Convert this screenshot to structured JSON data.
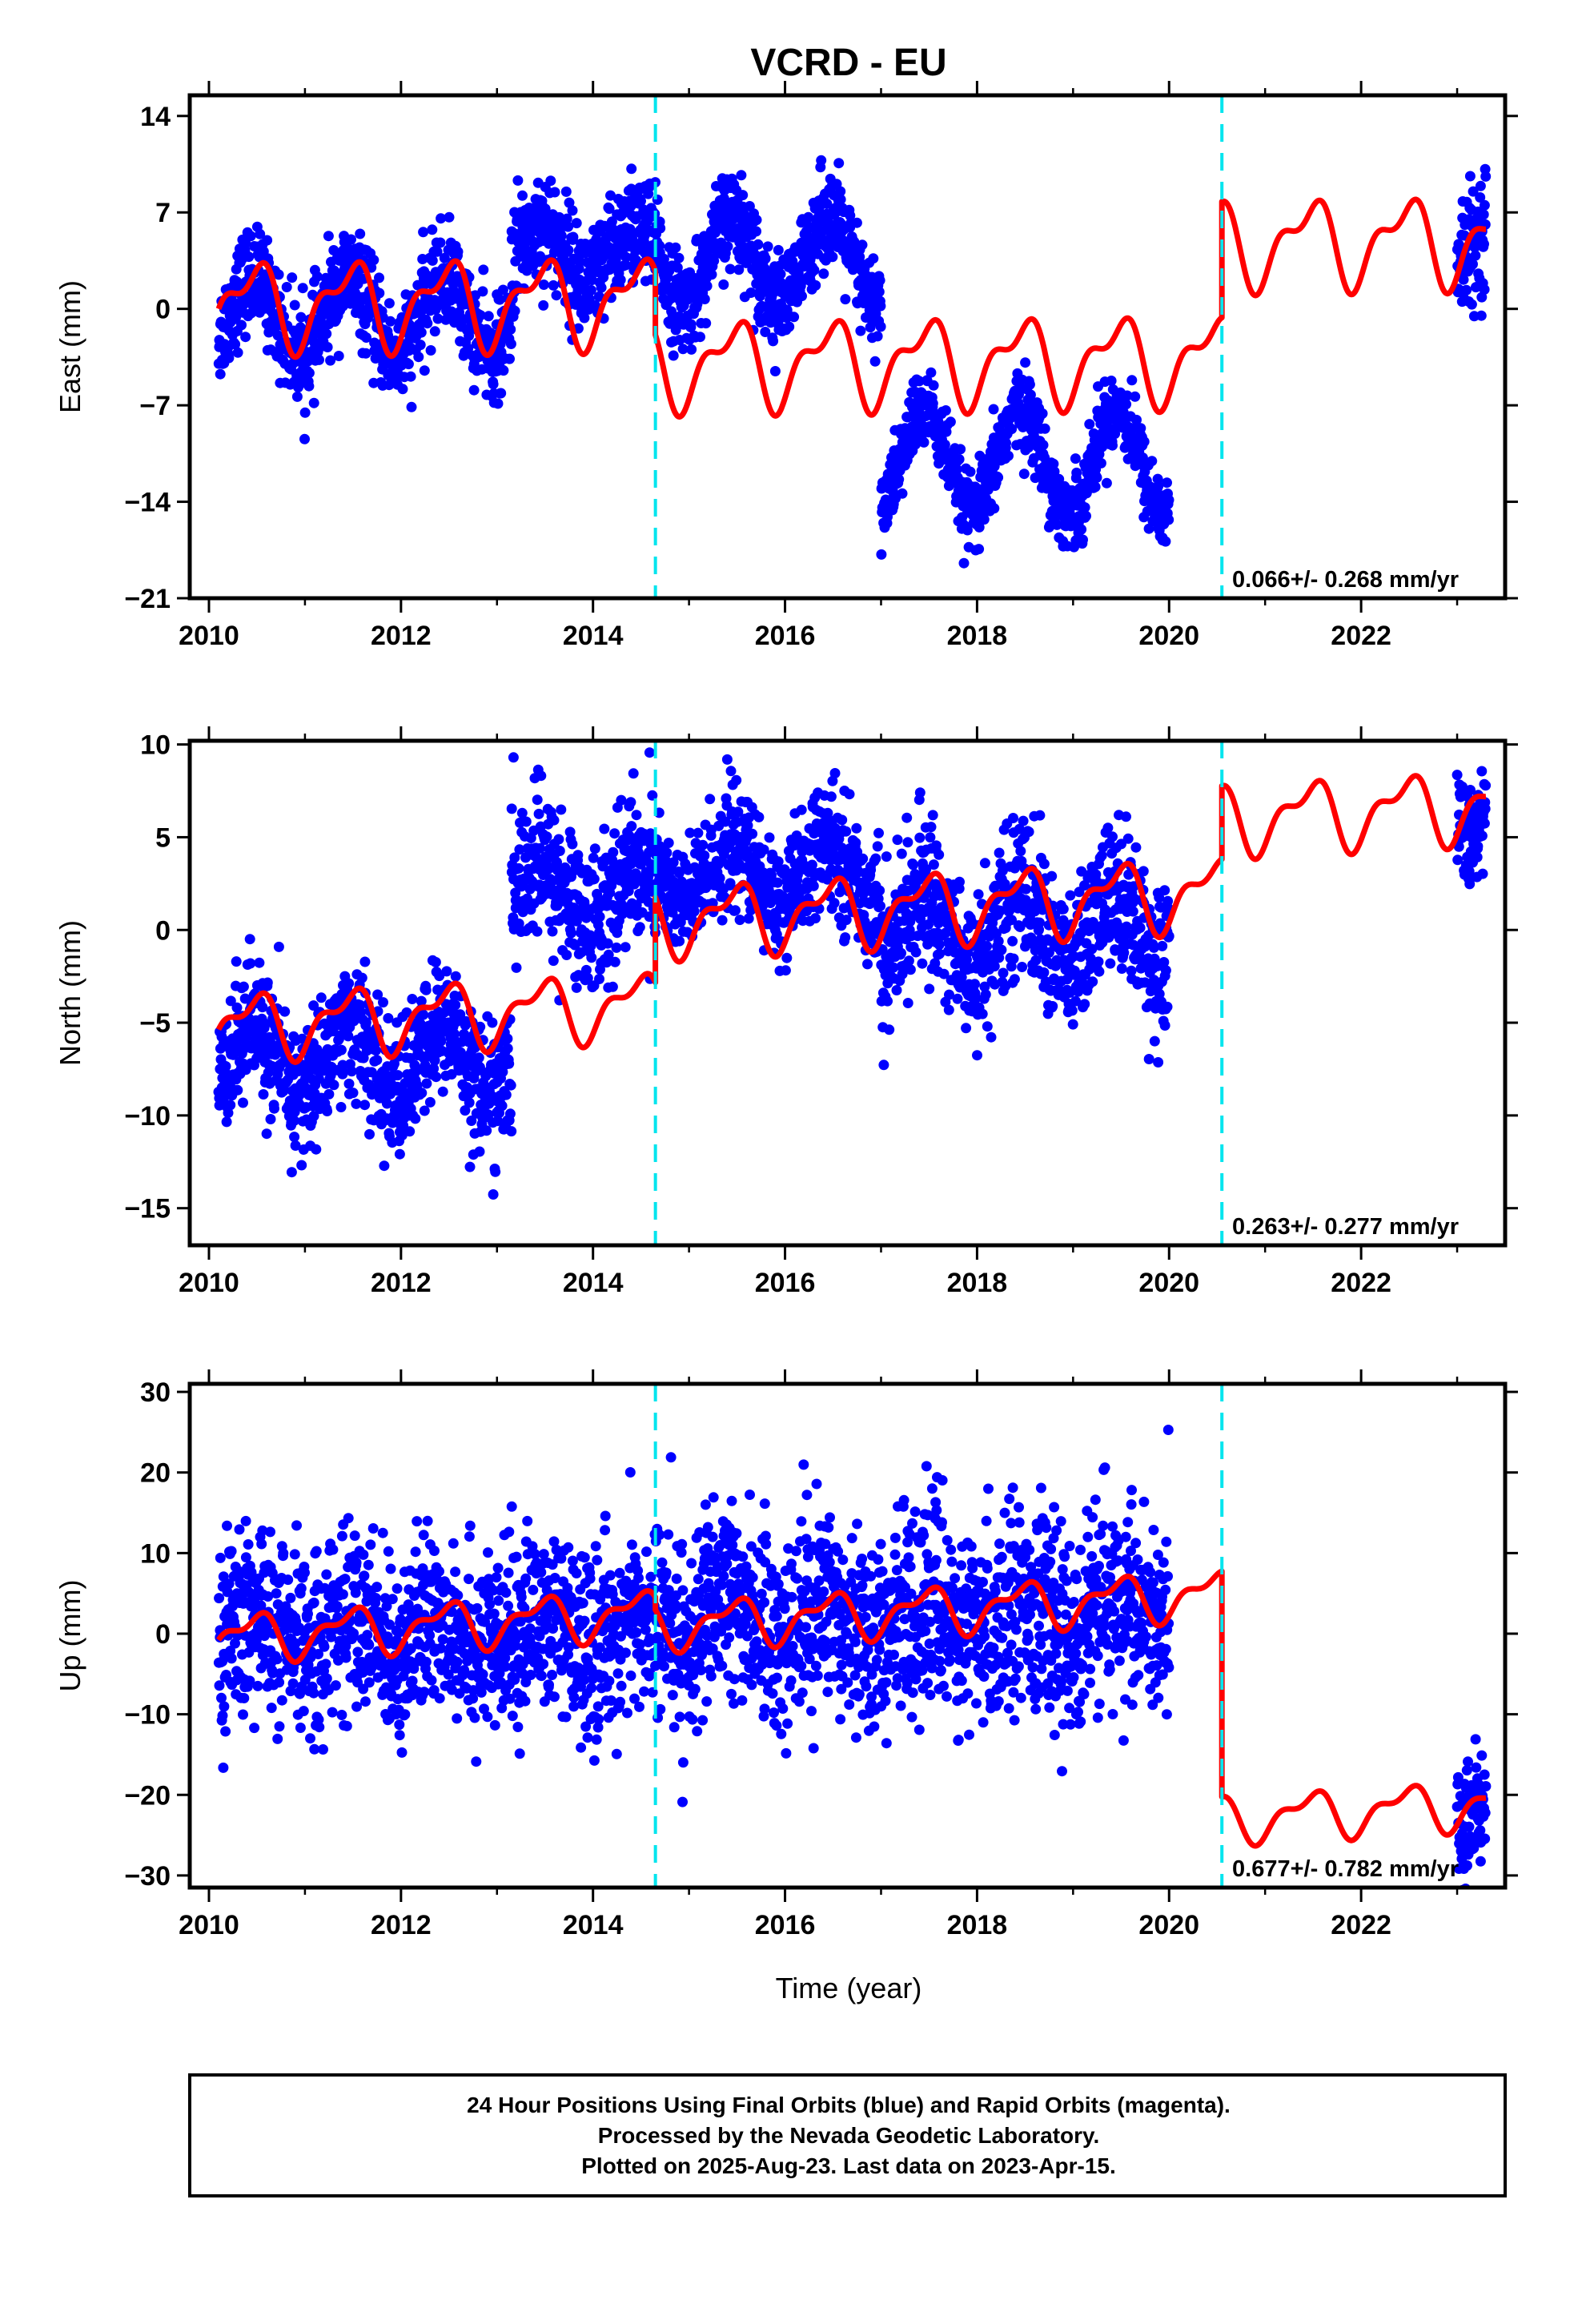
{
  "title": "VCRD - EU",
  "xlabel": "Time (year)",
  "footer": [
    "24 Hour Positions Using Final Orbits (blue) and Rapid Orbits (magenta).",
    "Processed by the Nevada Geodetic Laboratory.",
    "Plotted on 2025-Aug-23. Last data on 2023-Apr-15."
  ],
  "colors": {
    "observations": "#0000ff",
    "model": "#ff0000",
    "offsets": "#00e5ee",
    "frame": "#000000"
  },
  "chart_data": [
    {
      "type": "scatter",
      "ylabel": "East (mm)",
      "rate_label": "0.066+/- 0.268 mm/yr",
      "xlim": [
        2009.8,
        2023.5
      ],
      "ylim": [
        -21,
        15.5
      ],
      "xticks": [
        2010,
        2012,
        2014,
        2016,
        2018,
        2020,
        2022
      ],
      "yticks": [
        -21,
        -14,
        -7,
        0,
        7,
        14
      ],
      "ytick_labels": [
        "−21",
        "−14",
        "−7",
        "0",
        "7",
        "14"
      ],
      "offset_epochs": [
        2014.65,
        2020.55
      ],
      "data_segments": [
        {
          "start": 2010.1,
          "end": 2013.15,
          "base": -0.5,
          "amplitude": 2.8,
          "noise": 1.8
        },
        {
          "start": 2013.15,
          "end": 2014.65,
          "base": 4.0,
          "amplitude": 2.0,
          "noise": 2.0
        },
        {
          "start": 2014.65,
          "end": 2017.0,
          "base": 3.5,
          "amplitude": 3.2,
          "noise": 1.7
        },
        {
          "start": 2017.0,
          "end": 2020.0,
          "base": -11.0,
          "amplitude": 3.8,
          "noise": 1.4
        },
        {
          "start": 2023.0,
          "end": 2023.3,
          "base": 3.0,
          "amplitude": 0,
          "noise": 2.0,
          "trend": 10
        }
      ],
      "model_segments": [
        {
          "start": 2010.1,
          "end": 2014.65,
          "base": 0.3,
          "amplitude": 2.7,
          "trend": 0.066
        },
        {
          "start": 2014.65,
          "end": 2020.55,
          "base": -4.0,
          "amplitude": 2.7,
          "trend": 0.066
        },
        {
          "start": 2020.55,
          "end": 2023.3,
          "base": 4.8,
          "amplitude": 2.7,
          "trend": 0.066
        }
      ]
    },
    {
      "type": "scatter",
      "ylabel": "North (mm)",
      "rate_label": "0.263+/- 0.277 mm/yr",
      "xlim": [
        2009.8,
        2023.5
      ],
      "ylim": [
        -17,
        10.2
      ],
      "xticks": [
        2010,
        2012,
        2014,
        2016,
        2018,
        2020,
        2022
      ],
      "yticks": [
        -15,
        -10,
        -5,
        0,
        5,
        10
      ],
      "ytick_labels": [
        "−15",
        "−10",
        "−5",
        "0",
        "5",
        "10"
      ],
      "offset_epochs": [
        2014.65,
        2020.55
      ],
      "data_segments": [
        {
          "start": 2010.1,
          "end": 2013.15,
          "base": -7.0,
          "amplitude": 1.8,
          "noise": 1.8
        },
        {
          "start": 2013.15,
          "end": 2014.65,
          "base": 2.0,
          "amplitude": 1.5,
          "noise": 2.0
        },
        {
          "start": 2014.65,
          "end": 2017.0,
          "base": 3.0,
          "amplitude": 1.5,
          "noise": 1.6
        },
        {
          "start": 2017.0,
          "end": 2020.0,
          "base": 0.0,
          "amplitude": 2.0,
          "noise": 2.0
        },
        {
          "start": 2023.0,
          "end": 2023.3,
          "base": 5.5,
          "amplitude": 0,
          "noise": 1.5
        }
      ],
      "model_segments": [
        {
          "start": 2010.1,
          "end": 2014.65,
          "base": -5.2,
          "amplitude": 1.5,
          "trend": 0.263
        },
        {
          "start": 2014.65,
          "end": 2020.55,
          "base": 0.5,
          "amplitude": 1.6,
          "trend": 0.263
        },
        {
          "start": 2020.55,
          "end": 2023.3,
          "base": 6.0,
          "amplitude": 1.6,
          "trend": 0.263
        }
      ]
    },
    {
      "type": "scatter",
      "ylabel": "Up (mm)",
      "rate_label": "0.677+/- 0.782 mm/yr",
      "xlim": [
        2009.8,
        2023.5
      ],
      "ylim": [
        -31.5,
        31
      ],
      "xticks": [
        2010,
        2012,
        2014,
        2016,
        2018,
        2020,
        2022
      ],
      "yticks": [
        -30,
        -20,
        -10,
        0,
        10,
        20,
        30
      ],
      "ytick_labels": [
        "−30",
        "−20",
        "−10",
        "0",
        "10",
        "20",
        "30"
      ],
      "offset_epochs": [
        2014.65,
        2020.55
      ],
      "data_segments": [
        {
          "start": 2010.1,
          "end": 2014.65,
          "base": 0.0,
          "amplitude": 2.0,
          "noise": 5.5
        },
        {
          "start": 2014.65,
          "end": 2020.0,
          "base": 2.0,
          "amplitude": 2.5,
          "noise": 6.0
        },
        {
          "start": 2023.0,
          "end": 2023.3,
          "base": -23.0,
          "amplitude": 0,
          "noise": 4.0
        }
      ],
      "model_segments": [
        {
          "start": 2010.1,
          "end": 2014.65,
          "base": -0.5,
          "amplitude": 2.5,
          "trend": 0.677
        },
        {
          "start": 2014.65,
          "end": 2020.55,
          "base": 1.0,
          "amplitude": 2.5,
          "trend": 0.677
        },
        {
          "start": 2020.55,
          "end": 2023.3,
          "base": -23.0,
          "amplitude": 2.5,
          "trend": 0.677
        }
      ]
    }
  ]
}
